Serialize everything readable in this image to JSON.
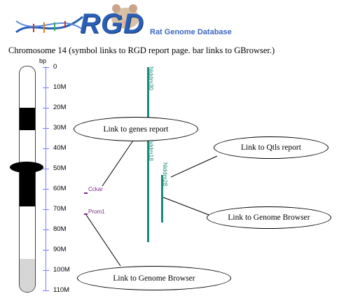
{
  "header": {
    "logo_text": "RGD",
    "tagline": "Rat Genome Database"
  },
  "page_title": "Chromosome 14  (symbol links to RGD report page. bar links to GBrowser.)",
  "scale": {
    "unit": "bp",
    "ticks": [
      "0",
      "10M",
      "20M",
      "30M",
      "40M",
      "50M",
      "60M",
      "70M",
      "80M",
      "90M",
      "100M",
      "110M"
    ]
  },
  "qtls": [
    {
      "label": "Niddm30"
    },
    {
      "label": "Niddm18"
    },
    {
      "label": "Niddm28"
    }
  ],
  "genes": [
    {
      "label": "Cckar"
    },
    {
      "label": "Prom1"
    }
  ],
  "callouts": {
    "genes_report": "Link to genes report",
    "qtls_report": "Link to Qtls report",
    "genome_browser_qtl": "Link to Genome Browser",
    "genome_browser_gene": "Link to Genome Browser"
  },
  "colors": {
    "qtl_bar": "#1b8a7c",
    "gene": "#7a2a86",
    "axis": "#7b7bff",
    "logo": "#2a5fb5"
  }
}
